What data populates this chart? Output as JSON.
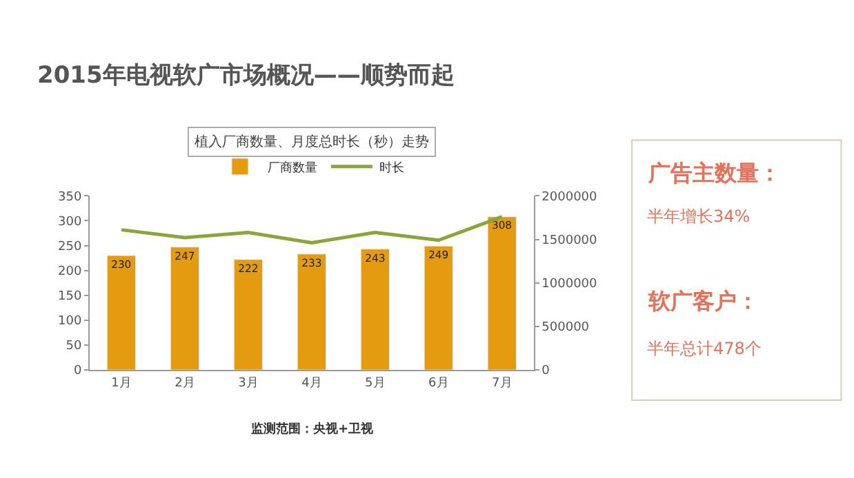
{
  "chart_data": [
    {
      "type": "bar",
      "title": "植入厂商数量、月度总时长（秒）走势",
      "categories": [
        "1月",
        "2月",
        "3月",
        "4月",
        "5月",
        "6月",
        "7月"
      ],
      "series": [
        {
          "name": "厂商数量",
          "type": "bar",
          "color": "#e49b0f",
          "values": [
            230,
            247,
            222,
            233,
            243,
            249,
            308
          ],
          "value_labels": [
            "230",
            "247",
            "222",
            "233",
            "243",
            "249",
            "308"
          ]
        },
        {
          "name": "时长",
          "type": "line",
          "axis": "y2",
          "color": "#8aa53a",
          "values": [
            1610000,
            1520000,
            1580000,
            1460000,
            1580000,
            1490000,
            1760000
          ]
        }
      ],
      "ylim": [
        0,
        350
      ],
      "yticks": [
        0,
        50,
        100,
        150,
        200,
        250,
        300,
        350
      ],
      "y2lim": [
        0,
        2000000
      ],
      "y2ticks": [
        0,
        500000,
        1000000,
        1500000,
        2000000
      ],
      "legend": "top",
      "marker": "none",
      "line_style": "solid",
      "annotations": [
        "2015年电视软广市场概况——顺势而起",
        "监测范围：央视+卫视"
      ]
    },
    {
      "type": "other",
      "annotations": [
        "广告主数量：",
        "半年增长34%",
        "软广客户：",
        "半年总计478个"
      ]
    }
  ]
}
